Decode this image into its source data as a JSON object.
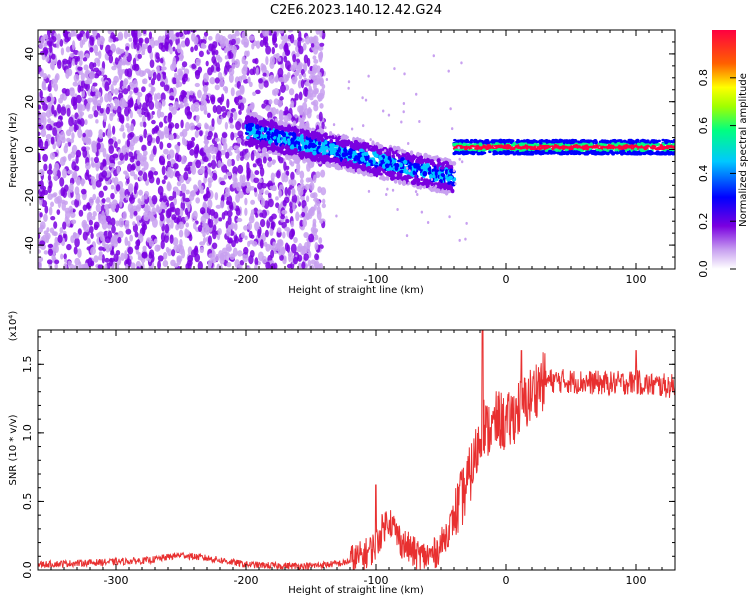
{
  "title": "C2E6.2023.140.12.42.G24",
  "chart_data": [
    {
      "type": "heatmap",
      "xlabel": "Height of straight line (km)",
      "ylabel": "Frequency (Hz)",
      "xlim": [
        -360,
        130
      ],
      "ylim": [
        -50,
        50
      ],
      "xticks": [
        -300,
        -200,
        -100,
        0,
        100
      ],
      "yticks": [
        -40,
        -20,
        0,
        20,
        40
      ],
      "colorbar": {
        "label": "Normalized spectral amplitude",
        "range": [
          0,
          1
        ],
        "ticks": [
          0.0,
          0.2,
          0.4,
          0.6,
          0.8
        ],
        "tick_labels": [
          "0.0",
          "0.2",
          "0.4",
          "0.6",
          "0.8"
        ],
        "colors": [
          "#ffffff",
          "#c8a0f0",
          "#7a00e0",
          "#0000ff",
          "#00c8ff",
          "#00ff80",
          "#a0ff00",
          "#ffff00",
          "#ff6000",
          "#ff0040"
        ]
      },
      "regions": [
        {
          "x_range": [
            -360,
            -140
          ],
          "freq_range": [
            -50,
            50
          ],
          "amplitude": 0.15,
          "description_level": "noise"
        },
        {
          "x_range": [
            -200,
            -40
          ],
          "freq_track_start": 8,
          "freq_track_end": -12,
          "amplitude": 0.45
        },
        {
          "x_range": [
            -40,
            130
          ],
          "freq_center": 1,
          "freq_width": 3,
          "amplitude": 0.9
        }
      ]
    },
    {
      "type": "line",
      "xlabel": "Height of straight line (km)",
      "ylabel": "SNR (10 * v/v)",
      "y_multiplier": "(x10⁴)",
      "xlim": [
        -360,
        130
      ],
      "ylim": [
        0,
        1.75
      ],
      "xticks": [
        -300,
        -200,
        -100,
        0,
        100
      ],
      "yticks": [
        0.0,
        0.5,
        1.0,
        1.5
      ],
      "ytick_labels": [
        "0.0",
        "0.5",
        "1.0",
        "1.5"
      ],
      "line_color": "#e83030",
      "series": [
        {
          "x": [
            -360,
            -330,
            -300,
            -275,
            -250,
            -225,
            -200,
            -175,
            -150,
            -125,
            -110,
            -100,
            -95,
            -90,
            -85,
            -80,
            -75,
            -70,
            -65,
            -60,
            -55,
            -50,
            -45,
            -40,
            -35,
            -30,
            -25,
            -20,
            -18,
            -15,
            -12,
            -10,
            -8,
            -5,
            0,
            5,
            10,
            15,
            20,
            25,
            30,
            40,
            60,
            80,
            100,
            110,
            130
          ],
          "y": [
            0.04,
            0.05,
            0.06,
            0.07,
            0.11,
            0.08,
            0.04,
            0.03,
            0.03,
            0.05,
            0.1,
            0.18,
            0.3,
            0.38,
            0.28,
            0.2,
            0.16,
            0.12,
            0.1,
            0.1,
            0.12,
            0.18,
            0.28,
            0.38,
            0.5,
            0.62,
            0.78,
            0.95,
            1.1,
            1.0,
            1.05,
            1.02,
            1.08,
            1.1,
            1.05,
            1.12,
            1.18,
            1.22,
            1.28,
            1.35,
            1.38,
            1.38,
            1.37,
            1.36,
            1.37,
            1.35,
            1.34
          ]
        }
      ],
      "peaks": [
        {
          "x": -100,
          "y": 0.62
        },
        {
          "x": -18,
          "y": 1.75
        },
        {
          "x": 12,
          "y": 1.6
        },
        {
          "x": 100,
          "y": 1.6
        }
      ]
    }
  ]
}
